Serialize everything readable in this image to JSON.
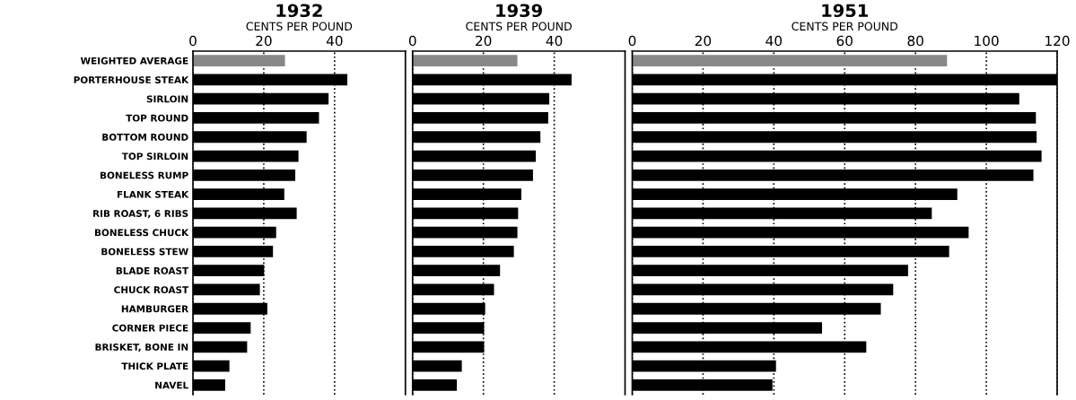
{
  "chart_data": [
    {
      "type": "bar",
      "orientation": "horizontal",
      "title": "1932",
      "xlabel": "CENTS PER POUND",
      "categories": [
        "WEIGHTED AVERAGE",
        "PORTERHOUSE STEAK",
        "SIRLOIN",
        "TOP ROUND",
        "BOTTOM ROUND",
        "TOP SIRLOIN",
        "BONELESS RUMP",
        "FLANK STEAK",
        "RIB ROAST, 6 RIBS",
        "BONELESS CHUCK",
        "BONELESS STEW",
        "BLADE ROAST",
        "CHUCK ROAST",
        "HAMBURGER",
        "CORNER PIECE",
        "BRISKET, BONE IN",
        "THICK PLATE",
        "NAVEL"
      ],
      "values": [
        26,
        43.6,
        38.3,
        35.6,
        32.1,
        29.8,
        28.9,
        25.8,
        29.3,
        23.5,
        22.6,
        20.1,
        18.9,
        21,
        16.3,
        15.3,
        10.3,
        9.1
      ],
      "colors": [
        "#888888",
        "#000000",
        "#000000",
        "#000000",
        "#000000",
        "#000000",
        "#000000",
        "#000000",
        "#000000",
        "#000000",
        "#000000",
        "#000000",
        "#000000",
        "#000000",
        "#000000",
        "#000000",
        "#000000",
        "#000000"
      ],
      "xlim": [
        0,
        60
      ],
      "xticks": [
        0,
        20,
        40
      ],
      "grid": "x"
    },
    {
      "type": "bar",
      "orientation": "horizontal",
      "title": "1939",
      "xlabel": "CENTS PER POUND",
      "categories": [
        null,
        null,
        null,
        null,
        null,
        null,
        null,
        null,
        null,
        null,
        null,
        null,
        null,
        null,
        null,
        null,
        null,
        null
      ],
      "values": [
        29.6,
        44.9,
        38.6,
        38.3,
        36.1,
        34.8,
        34,
        30.7,
        29.8,
        29.6,
        28.6,
        24.7,
        23,
        20.5,
        20.2,
        20.2,
        13.9,
        12.5
      ],
      "colors": [
        "#888888",
        "#000000",
        "#000000",
        "#000000",
        "#000000",
        "#000000",
        "#000000",
        "#000000",
        "#000000",
        "#000000",
        "#000000",
        "#000000",
        "#000000",
        "#000000",
        "#000000",
        "#000000",
        "#000000",
        "#000000"
      ],
      "xlim": [
        0,
        60
      ],
      "xticks": [
        0,
        20,
        40
      ],
      "grid": "x",
      "tick_labels": "x"
    },
    {
      "type": "bar",
      "orientation": "horizontal",
      "title": "1951",
      "xlabel": "CENTS PER POUND",
      "categories": [
        null,
        null,
        null,
        null,
        null,
        null,
        null,
        null,
        null,
        null,
        null,
        null,
        null,
        null,
        null,
        null,
        null,
        null
      ],
      "values": [
        88.9,
        120,
        109.3,
        114,
        114.2,
        115.6,
        113.3,
        91.8,
        84.6,
        95,
        89.5,
        77.9,
        73.7,
        70.2,
        53.6,
        66.1,
        40.6,
        39.6
      ],
      "colors": [
        "#888888",
        "#000000",
        "#000000",
        "#000000",
        "#000000",
        "#000000",
        "#000000",
        "#000000",
        "#000000",
        "#000000",
        "#000000",
        "#000000",
        "#000000",
        "#000000",
        "#000000",
        "#000000",
        "#000000",
        "#000000"
      ],
      "xlim": [
        0,
        120
      ],
      "xticks": [
        0,
        20,
        40,
        60,
        80,
        100,
        120
      ],
      "grid": "x",
      "tick_labels": "x"
    }
  ]
}
